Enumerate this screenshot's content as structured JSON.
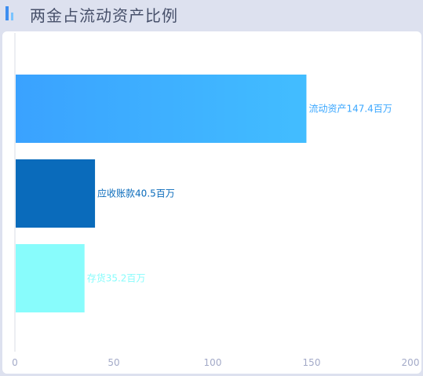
{
  "header": {
    "title": "两金占流动资产比例"
  },
  "chart_data": {
    "type": "bar",
    "orientation": "horizontal",
    "categories": [
      "流动资产",
      "应收账款",
      "存货"
    ],
    "values": [
      147.4,
      40.5,
      35.2
    ],
    "unit": "百万",
    "data_labels": [
      "流动资产147.4百万",
      "应收账款40.5百万",
      "存货35.2百万"
    ],
    "xlim": [
      0,
      200
    ],
    "xticks": [
      "0",
      "50",
      "100",
      "150",
      "200"
    ],
    "colors": [
      "#3aa7ff",
      "#0a6bbb",
      "#88fcfc"
    ],
    "label_colors": [
      "#3aa7ff",
      "#0a6bbb",
      "#88fcfc"
    ],
    "grid": false,
    "legend": "none"
  }
}
